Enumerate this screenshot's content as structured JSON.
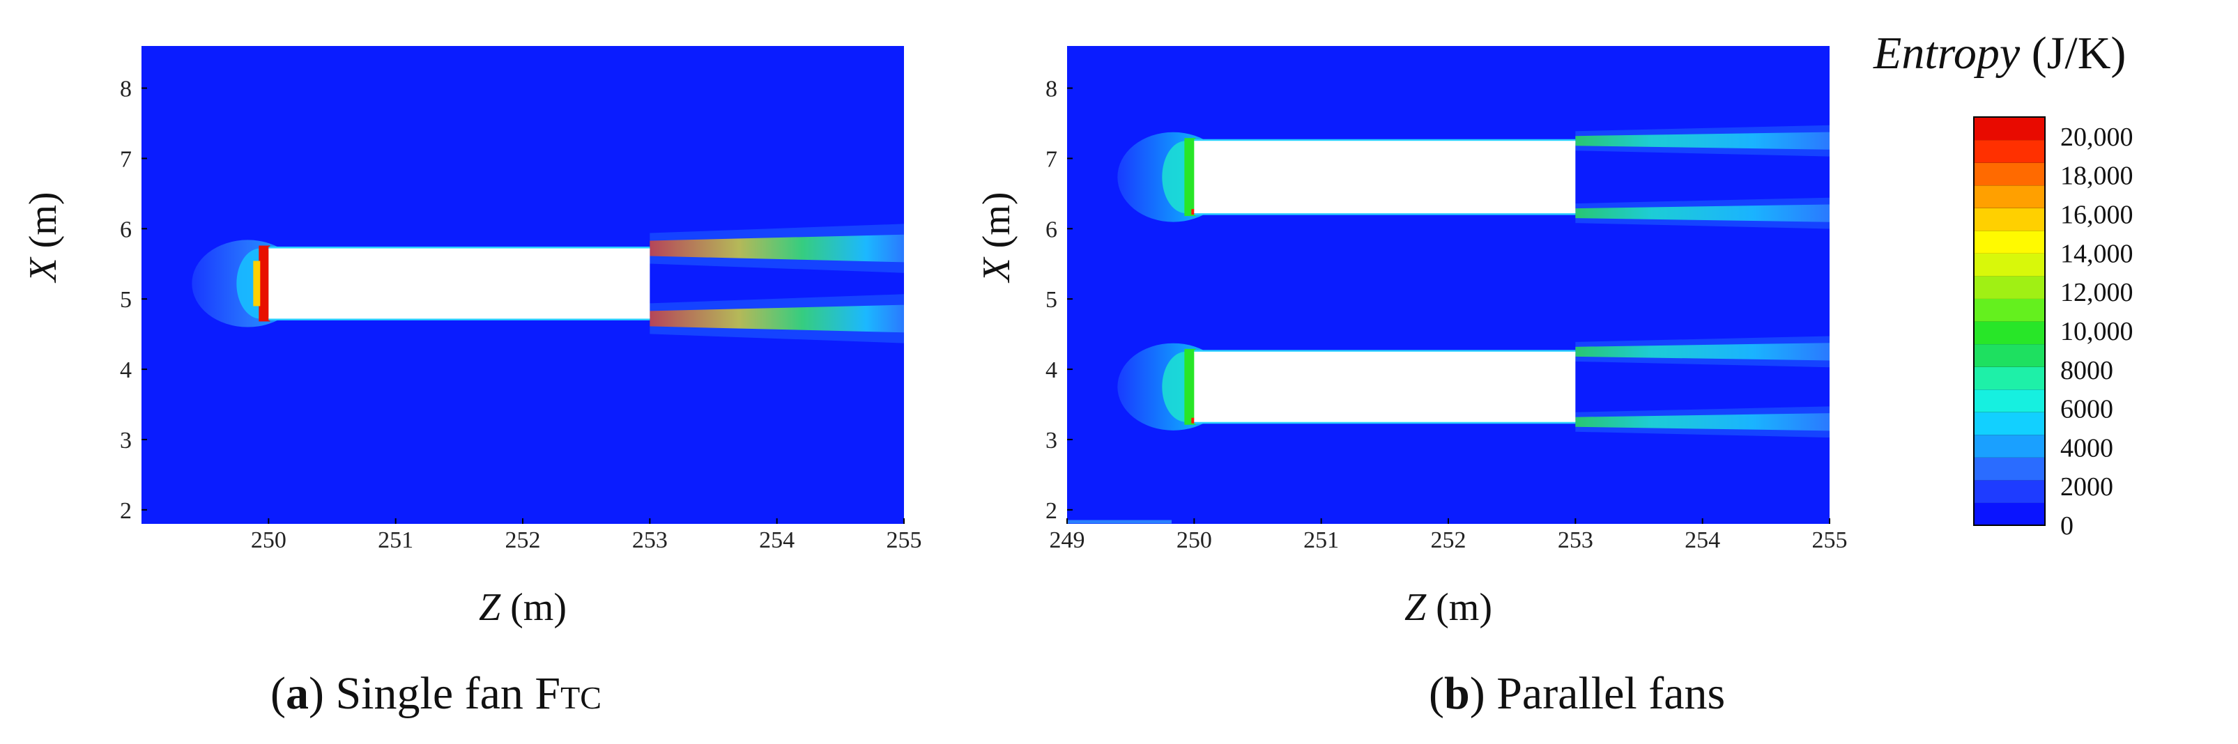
{
  "chart_data": [
    {
      "type": "heatmap",
      "panel": "a",
      "caption_letter": "a",
      "caption_text": "Single fan F",
      "caption_sub": "TC",
      "xlabel_var": "Z",
      "xlabel_unit": "(m)",
      "ylabel_var": "X",
      "ylabel_unit": "(m)",
      "xlim": [
        249,
        255
      ],
      "ylim": [
        1.8,
        8.6
      ],
      "xticks": [
        "250",
        "251",
        "252",
        "253",
        "254",
        "255"
      ],
      "yticks": [
        "2",
        "3",
        "4",
        "5",
        "6",
        "7",
        "8"
      ],
      "background_value": 0,
      "fans": [
        {
          "z": [
            250,
            253
          ],
          "x": [
            4.72,
            5.72
          ]
        }
      ]
    },
    {
      "type": "heatmap",
      "panel": "b",
      "caption_letter": "b",
      "caption_text": "Parallel fans",
      "xlabel_var": "Z",
      "xlabel_unit": "(m)",
      "ylabel_var": "X",
      "ylabel_unit": "(m)",
      "xlim": [
        249,
        255
      ],
      "ylim": [
        1.8,
        8.6
      ],
      "xticks": [
        "249",
        "250",
        "251",
        "252",
        "253",
        "254",
        "255"
      ],
      "yticks": [
        "2",
        "3",
        "4",
        "5",
        "6",
        "7",
        "8"
      ],
      "background_value": 0,
      "fans": [
        {
          "z": [
            250,
            253
          ],
          "x": [
            6.22,
            7.25
          ]
        },
        {
          "z": [
            250,
            253
          ],
          "x": [
            3.25,
            4.25
          ]
        }
      ]
    }
  ],
  "legend": {
    "title_var": "Entropy",
    "title_unit": "(J/K)",
    "range": [
      0,
      21000
    ],
    "labels": [
      "20,000",
      "18,000",
      "16,000",
      "14,000",
      "12,000",
      "10,000",
      "8000",
      "6000",
      "4000",
      "2000",
      "0"
    ],
    "colors": [
      "#0a14ff",
      "#1e3cff",
      "#2a6cff",
      "#1aa0ff",
      "#12d0ff",
      "#16f0e0",
      "#1ef0a8",
      "#1ee060",
      "#28e628",
      "#64f01e",
      "#a0f014",
      "#d8f80a",
      "#fffa00",
      "#ffd000",
      "#ffa000",
      "#ff6a00",
      "#ff3000",
      "#e80a00"
    ]
  },
  "colors": {
    "field": "#0a1cff",
    "fan": "#ffffff"
  }
}
